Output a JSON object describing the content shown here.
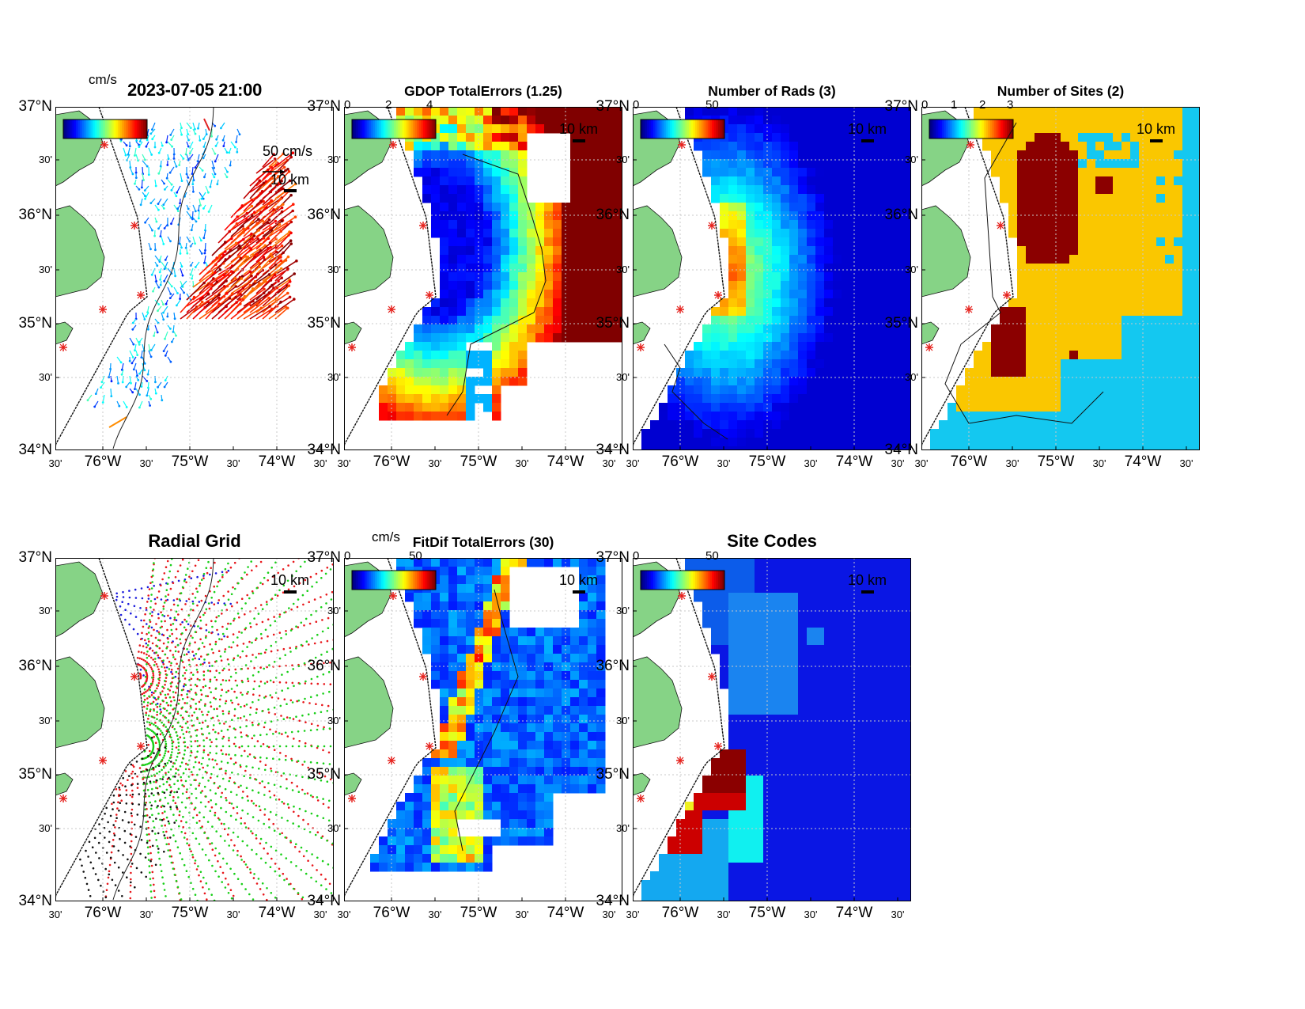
{
  "panels": {
    "totals": {
      "title": "2023-07-05 21:00",
      "unit": "cm/s",
      "legend_speed": "50 cm/s",
      "scale": "10 km",
      "isobath": "100"
    },
    "gdop": {
      "title": "GDOP TotalErrors (1.25)",
      "ticks": [
        "0",
        "2",
        "4"
      ],
      "scale": "10 km",
      "contour": "1.25"
    },
    "rads": {
      "title": "Number of Rads (3)",
      "ticks": [
        "0",
        "50"
      ],
      "scale": "10 km",
      "contour": "3"
    },
    "sites": {
      "title": "Number of Sites (2)",
      "ticks": [
        "0",
        "1",
        "2",
        "3"
      ],
      "scale": "10 km",
      "contour": "2"
    },
    "grid": {
      "title": "Radial Grid",
      "scale": "10 km",
      "isobath": "100"
    },
    "fitdif": {
      "title": "FitDif TotalErrors (30)",
      "unit": "cm/s",
      "ticks": [
        "0",
        "50"
      ],
      "scale": "10 km",
      "contour": "30"
    },
    "codes": {
      "title": "Site Codes",
      "ticks": [
        "0",
        "50"
      ],
      "scale": "10 km"
    }
  },
  "axes": {
    "y_labels": [
      "37°N",
      "30'",
      "36°N",
      "30'",
      "35°N",
      "30'",
      "34°N"
    ],
    "x_labels": [
      "30'",
      "76°W",
      "30'",
      "75°W",
      "30'",
      "74°W",
      "30'"
    ]
  },
  "colors": {
    "land": "#86d386",
    "ocean_deep": "#0a16e4",
    "site_marker": "#e6201b",
    "grid_site_1": "#e8171b",
    "grid_site_2": "#1b1bdc",
    "grid_site_3": "#19cf19",
    "grid_site_4": "#111111",
    "sites_one": "#14c8f0",
    "sites_two": "#fac700",
    "sites_three": "#8b0000"
  },
  "colormap": "jet"
}
